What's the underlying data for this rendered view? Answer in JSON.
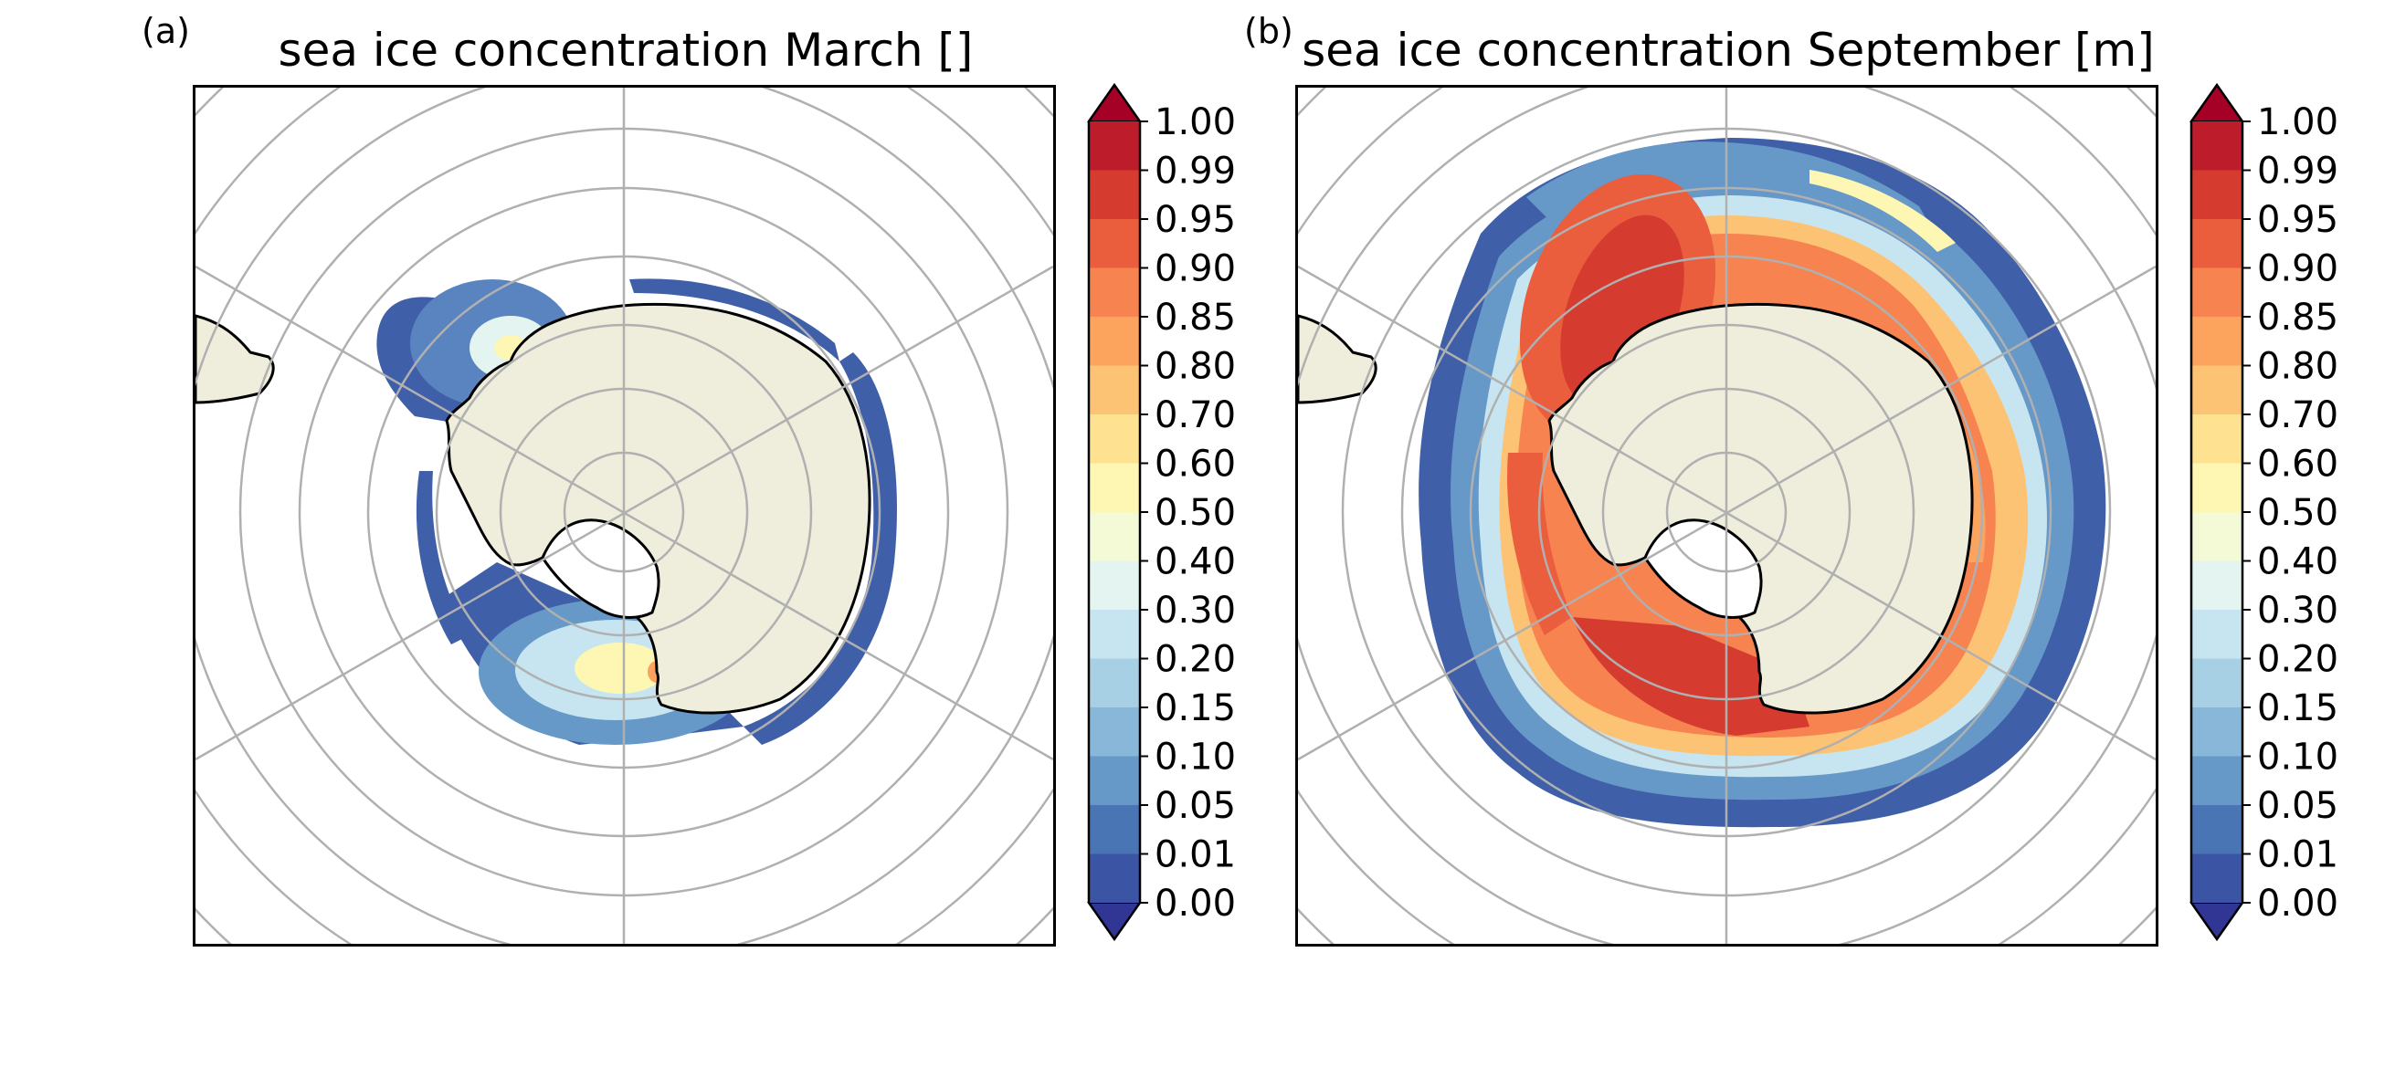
{
  "panels": [
    {
      "label": "(a)",
      "title": "sea ice concentration March []",
      "month": "March"
    },
    {
      "label": "(b)",
      "title": "sea ice concentration September [m]",
      "month": "September"
    }
  ],
  "colorbar": {
    "ticks": [
      "0.00",
      "0.01",
      "0.05",
      "0.10",
      "0.15",
      "0.20",
      "0.30",
      "0.40",
      "0.50",
      "0.60",
      "0.70",
      "0.80",
      "0.85",
      "0.90",
      "0.95",
      "0.99",
      "1.00"
    ],
    "colors": [
      "#3b55a4",
      "#4a75b4",
      "#6698c8",
      "#88b7d9",
      "#a8d0e4",
      "#c7e5f0",
      "#e4f4f1",
      "#f4f9d6",
      "#fef6b3",
      "#fee191",
      "#fdc374",
      "#fca35e",
      "#f78350",
      "#ea5e3e",
      "#d63b2f",
      "#bd1d2a"
    ],
    "under_color": "#313695",
    "over_color": "#a50026",
    "extend": "both"
  },
  "style": {
    "land_color": "#efeddc",
    "coast_color": "#000000",
    "grid_color": "#b0b0b0"
  }
}
